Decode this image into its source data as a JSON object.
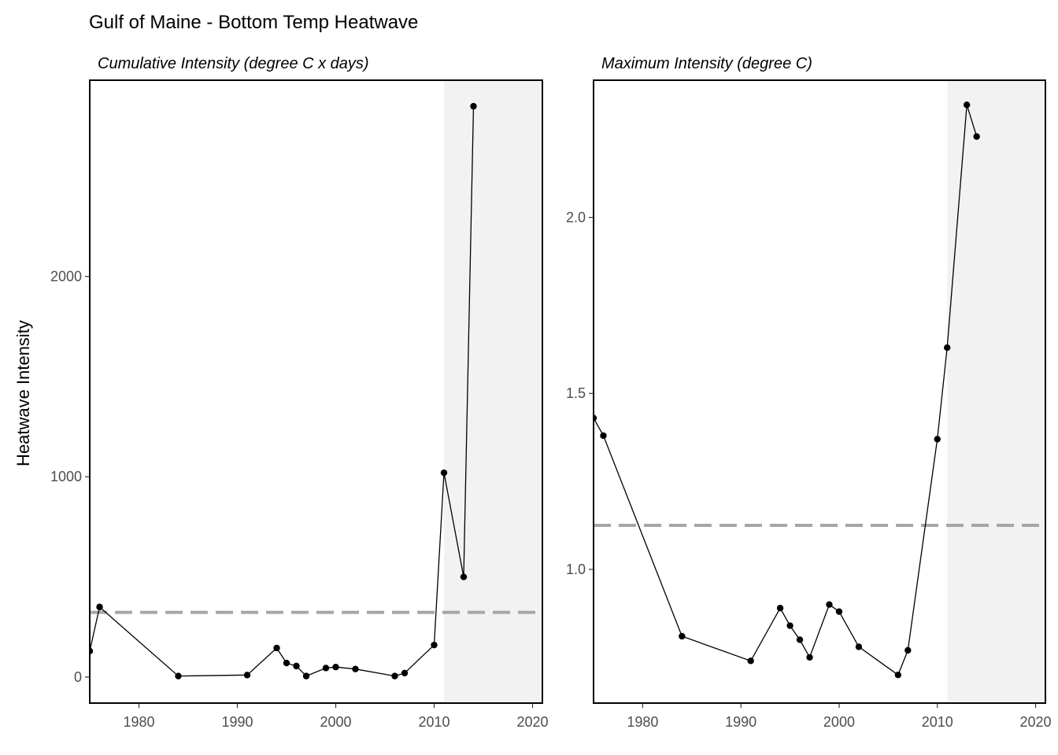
{
  "title": "Gulf of Maine - Bottom Temp Heatwave",
  "ylabel": "Heatwave Intensity",
  "chart_data": [
    {
      "type": "line",
      "subtitle": "Cumulative Intensity (degree C x days)",
      "xlim": [
        1975,
        2021
      ],
      "ylim": [
        -130,
        2980
      ],
      "xticks": [
        1980,
        1990,
        2000,
        2010,
        2020
      ],
      "yticks": [
        0,
        1000,
        2000
      ],
      "ytick_labels": [
        "0",
        "1000",
        "2000"
      ],
      "shaded_region": [
        2011,
        2021
      ],
      "reference_line": 323,
      "x": [
        1975,
        1976,
        1984,
        1991,
        1994,
        1995,
        1996,
        1997,
        1999,
        2000,
        2002,
        2006,
        2007,
        2010,
        2011,
        2013,
        2014
      ],
      "y": [
        130,
        350,
        5,
        10,
        145,
        70,
        55,
        5,
        45,
        50,
        40,
        5,
        20,
        160,
        1020,
        500,
        2850
      ],
      "colors": {
        "line": "#000000",
        "reference": "#a6a6a6",
        "shade": "#f2f2f2"
      }
    },
    {
      "type": "line",
      "subtitle": "Maximum Intensity (degree C)",
      "xlim": [
        1975,
        2021
      ],
      "ylim": [
        0.62,
        2.39
      ],
      "xticks": [
        1980,
        1990,
        2000,
        2010,
        2020
      ],
      "yticks": [
        1.0,
        1.5,
        2.0
      ],
      "ytick_labels": [
        "1.0",
        "1.5",
        "2.0"
      ],
      "shaded_region": [
        2011,
        2021
      ],
      "reference_line": 1.125,
      "x": [
        1975,
        1976,
        1984,
        1991,
        1994,
        1995,
        1996,
        1997,
        1999,
        2000,
        2002,
        2006,
        2007,
        2010,
        2011,
        2013,
        2014
      ],
      "y": [
        1.43,
        1.38,
        0.81,
        0.74,
        0.89,
        0.84,
        0.8,
        0.75,
        0.9,
        0.88,
        0.78,
        0.7,
        0.77,
        1.37,
        1.63,
        2.32,
        2.23
      ],
      "colors": {
        "line": "#000000",
        "reference": "#a6a6a6",
        "shade": "#f2f2f2"
      }
    }
  ]
}
